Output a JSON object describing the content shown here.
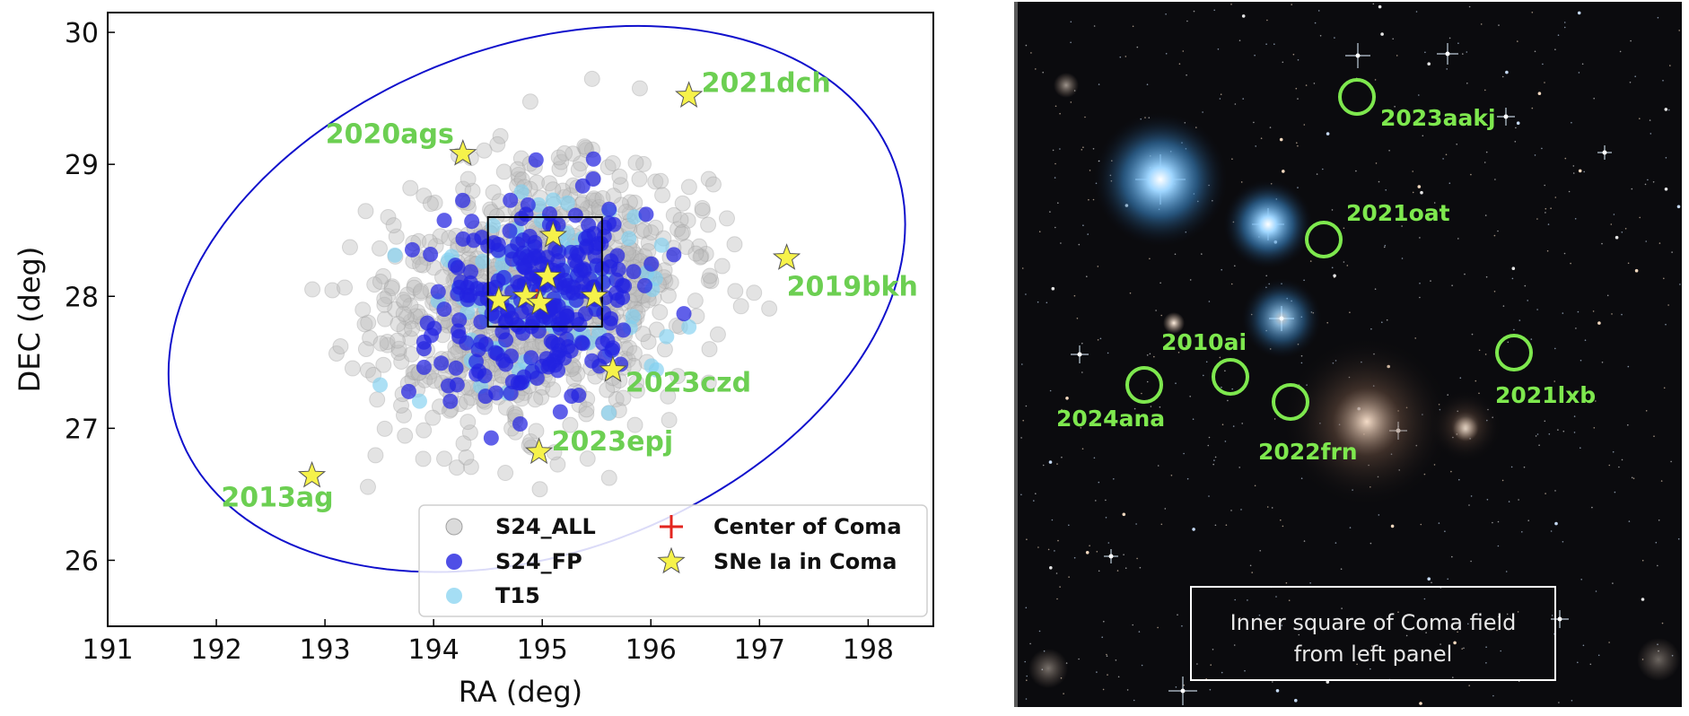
{
  "chart_data": {
    "type": "scatter",
    "xlabel": "RA (deg)",
    "ylabel": "DEC (deg)",
    "xlim": [
      191,
      198.6
    ],
    "ylim": [
      25.5,
      30.15
    ],
    "xticks": [
      "191",
      "192",
      "193",
      "194",
      "195",
      "196",
      "197",
      "198"
    ],
    "yticks": [
      "26",
      "27",
      "28",
      "29",
      "30"
    ],
    "grid": false,
    "legend_position": "lower-right",
    "legend": {
      "s24_all": "S24_ALL",
      "s24_fp": "S24_FP",
      "t15": "T15",
      "center": "Center of Coma",
      "snia": "SNe Ia in Coma"
    },
    "colors": {
      "s24_all": "#bdbdbd",
      "s24_fp": "#2323e0",
      "t15": "#7fd0ef",
      "center": "#e3261f",
      "snia": "#f6f24a",
      "ellipse": "#1010cc",
      "sn_label": "#6ccf52"
    },
    "center": {
      "x": 194.95,
      "y": 27.98
    },
    "inner_square": {
      "x0": 194.5,
      "x1": 195.55,
      "y0": 27.77,
      "y1": 28.6
    },
    "ellipse": {
      "cx": 194.95,
      "cy": 27.98,
      "rx": 3.46,
      "ry": 1.95,
      "rotation_deg": 14
    },
    "supernovae": [
      {
        "name": "2021dch",
        "x": 196.35,
        "y": 29.52
      },
      {
        "name": "2020ags",
        "x": 194.27,
        "y": 29.08
      },
      {
        "name": "2019bkh",
        "x": 197.25,
        "y": 28.29
      },
      {
        "name": "2023czd",
        "x": 195.65,
        "y": 27.44
      },
      {
        "name": "2023epj",
        "x": 194.97,
        "y": 26.82
      },
      {
        "name": "2013ag",
        "x": 192.88,
        "y": 26.64
      },
      {
        "name": "",
        "x": 195.1,
        "y": 28.46
      },
      {
        "name": "",
        "x": 195.05,
        "y": 28.15
      },
      {
        "name": "",
        "x": 194.6,
        "y": 27.97
      },
      {
        "name": "",
        "x": 194.85,
        "y": 28.0
      },
      {
        "name": "",
        "x": 194.98,
        "y": 27.95
      },
      {
        "name": "",
        "x": 195.48,
        "y": 28.0
      }
    ]
  },
  "photo": {
    "caption_line1": "Inner square of Coma field",
    "caption_line2": "from left panel",
    "circle_color": "#7ee84e",
    "labels": [
      "2023aakj",
      "2021oat",
      "2010ai",
      "2021lxb",
      "2024ana",
      "2022frn"
    ]
  }
}
